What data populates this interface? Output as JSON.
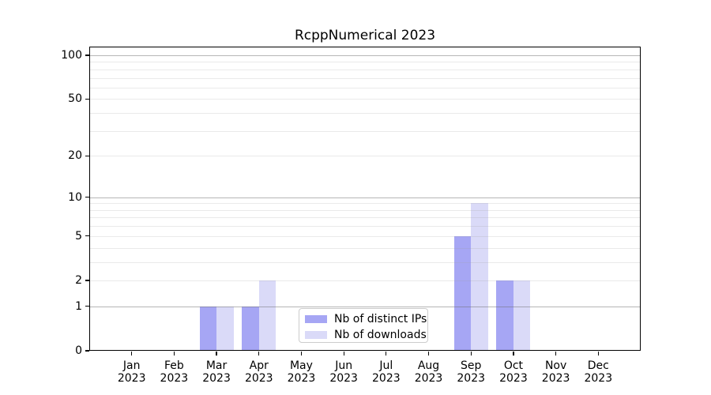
{
  "chart_data": {
    "type": "bar",
    "title": "RcppNumerical 2023",
    "categories": [
      "Jan",
      "Feb",
      "Mar",
      "Apr",
      "May",
      "Jun",
      "Jul",
      "Aug",
      "Sep",
      "Oct",
      "Nov",
      "Dec"
    ],
    "category_year": "2023",
    "series": [
      {
        "name": "Nb of distinct IPs",
        "color": "#a6a6f4",
        "values": [
          0,
          0,
          1,
          1,
          0,
          0,
          0,
          0,
          5,
          2,
          0,
          0
        ]
      },
      {
        "name": "Nb of downloads",
        "color": "#dadaf8",
        "values": [
          0,
          0,
          1,
          2,
          0,
          0,
          0,
          0,
          9,
          2,
          0,
          0
        ]
      }
    ],
    "xlabel": "",
    "ylabel": "",
    "y_scale": "log1p",
    "y_ticks": [
      0,
      1,
      2,
      5,
      10,
      20,
      50,
      100
    ],
    "ylim": [
      0,
      113
    ],
    "grid": {
      "major_at": [
        1,
        10,
        100
      ],
      "minor_at": [
        2,
        3,
        4,
        5,
        6,
        7,
        8,
        9,
        20,
        30,
        40,
        50,
        60,
        70,
        80,
        90
      ]
    },
    "legend": {
      "location": "lower center"
    }
  },
  "palette": {
    "background": "#ffffff",
    "spine": "#000000",
    "text": "#000000",
    "legend_border": "#cccccc"
  }
}
